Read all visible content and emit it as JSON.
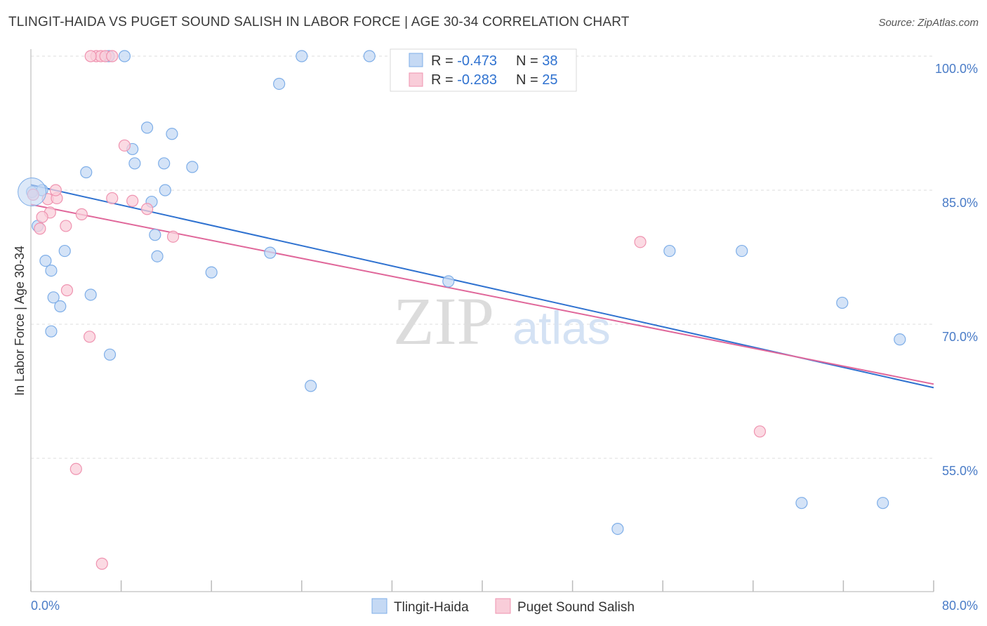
{
  "title": "TLINGIT-HAIDA VS PUGET SOUND SALISH IN LABOR FORCE | AGE 30-34 CORRELATION CHART",
  "source": "Source: ZipAtlas.com",
  "colors": {
    "blue_fill": "#c5d9f4",
    "blue_stroke": "#7eaee8",
    "blue_line": "#2f72d0",
    "pink_fill": "#f9cdd9",
    "pink_stroke": "#ef93b0",
    "pink_line": "#e0679a",
    "tick": "#4a7cc7",
    "grid": "#dddddd"
  },
  "chart_data": {
    "type": "scatter",
    "xlabel": "",
    "ylabel": "In Labor Force | Age 30-34",
    "xlim": [
      0,
      80
    ],
    "ylim": [
      40,
      103
    ],
    "x_tick_labels": [
      "0.0%",
      "80.0%"
    ],
    "y_ticks": [
      55,
      70,
      85,
      100
    ],
    "y_tick_labels": [
      "55.0%",
      "70.0%",
      "85.0%",
      "100.0%"
    ],
    "grid": true,
    "legend": {
      "placement": "top-center",
      "rows": [
        {
          "r_label": "R = ",
          "r_value": "-0.473",
          "n_label": "N = ",
          "n_value": "38"
        },
        {
          "r_label": "R = ",
          "r_value": "-0.283",
          "n_label": "N = ",
          "n_value": "25"
        }
      ]
    },
    "watermark": {
      "zip": "ZIP",
      "atlas": "atlas"
    },
    "series": [
      {
        "name": "Tlingit-Haida",
        "color": "blue",
        "points": [
          [
            0.1,
            84.8
          ],
          [
            1.0,
            85.0
          ],
          [
            0.6,
            81.0
          ],
          [
            1.3,
            77.1
          ],
          [
            2.0,
            73.0
          ],
          [
            2.6,
            72.0
          ],
          [
            1.8,
            76.0
          ],
          [
            3.0,
            78.2
          ],
          [
            1.8,
            69.2
          ],
          [
            5.3,
            73.3
          ],
          [
            6.9,
            100.0
          ],
          [
            8.3,
            100.0
          ],
          [
            10.3,
            92.0
          ],
          [
            9.0,
            89.6
          ],
          [
            11.8,
            88.0
          ],
          [
            14.3,
            87.6
          ],
          [
            4.9,
            87.0
          ],
          [
            9.2,
            88.0
          ],
          [
            11.9,
            85.0
          ],
          [
            12.5,
            91.3
          ],
          [
            10.7,
            83.7
          ],
          [
            11.0,
            80.0
          ],
          [
            11.2,
            77.6
          ],
          [
            16.0,
            75.8
          ],
          [
            7.0,
            66.6
          ],
          [
            24.0,
            100.0
          ],
          [
            22.0,
            96.9
          ],
          [
            21.2,
            78.0
          ],
          [
            24.8,
            63.1
          ],
          [
            30.0,
            100.0
          ],
          [
            37.0,
            74.8
          ],
          [
            56.6,
            78.2
          ],
          [
            63.0,
            78.2
          ],
          [
            71.9,
            72.4
          ],
          [
            77.0,
            68.3
          ],
          [
            68.3,
            50.0
          ],
          [
            75.5,
            50.0
          ],
          [
            52.0,
            47.1
          ]
        ]
      },
      {
        "name": "Puget Sound Salish",
        "color": "pink",
        "points": [
          [
            0.2,
            84.5
          ],
          [
            1.5,
            84.0
          ],
          [
            2.3,
            84.1
          ],
          [
            1.7,
            82.5
          ],
          [
            1.0,
            82.0
          ],
          [
            3.1,
            81.0
          ],
          [
            0.8,
            80.7
          ],
          [
            4.5,
            82.3
          ],
          [
            5.8,
            100.0
          ],
          [
            6.2,
            100.0
          ],
          [
            6.6,
            100.0
          ],
          [
            7.2,
            100.0
          ],
          [
            8.3,
            90.0
          ],
          [
            7.2,
            84.1
          ],
          [
            9.0,
            83.8
          ],
          [
            10.3,
            82.9
          ],
          [
            12.6,
            79.8
          ],
          [
            2.2,
            85.0
          ],
          [
            3.2,
            73.8
          ],
          [
            5.2,
            68.6
          ],
          [
            4.0,
            53.8
          ],
          [
            6.3,
            43.2
          ],
          [
            54.0,
            79.2
          ],
          [
            64.6,
            58.0
          ],
          [
            5.3,
            100.0
          ]
        ]
      }
    ],
    "trendlines": [
      {
        "series": "Tlingit-Haida",
        "x": [
          0,
          80
        ],
        "y": [
          85.6,
          62.9
        ]
      },
      {
        "series": "Puget Sound Salish",
        "x": [
          0,
          80
        ],
        "y": [
          83.4,
          63.3
        ]
      }
    ]
  },
  "bottom_legend": [
    "Tlingit-Haida",
    "Puget Sound Salish"
  ]
}
